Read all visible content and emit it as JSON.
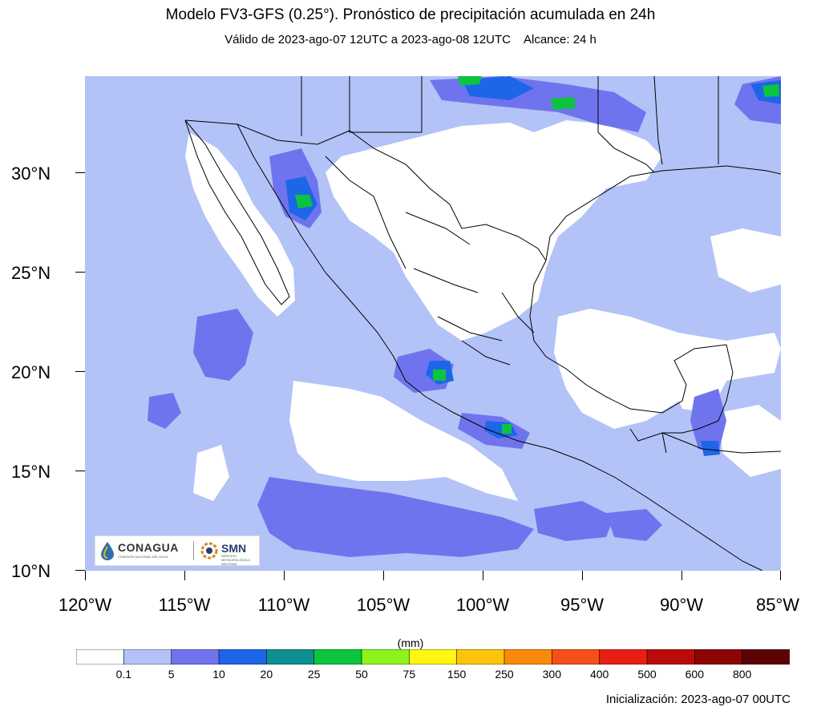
{
  "header": {
    "title": "Modelo FV3-GFS (0.25°). Pronóstico de precipitación acumulada en 24h",
    "valid": "Válido de 2023-ago-07 12UTC a 2023-ago-08 12UTC",
    "range": "Alcance: 24 h"
  },
  "map": {
    "lon_range": [
      -120,
      -85
    ],
    "lat_range": [
      10,
      35
    ],
    "lat_labels": [
      "30°N",
      "25°N",
      "20°N",
      "15°N",
      "10°N"
    ],
    "lat_values": [
      30,
      25,
      20,
      15,
      10
    ],
    "lon_labels": [
      "120°W",
      "115°W",
      "110°W",
      "105°W",
      "100°W",
      "95°W",
      "90°W",
      "85°W"
    ],
    "lon_values": [
      -120,
      -115,
      -110,
      -105,
      -100,
      -95,
      -90,
      -85
    ],
    "background_color": "#b3c3f7",
    "land_color": "#ffffff"
  },
  "logos": {
    "conagua": "CONAGUA",
    "conagua_sub": "COMISIÓN NACIONAL DEL AGUA",
    "smn": "SMN",
    "smn_sub": "SERVICIO METEOROLÓGICO NACIONAL"
  },
  "colorbar": {
    "units": "(mm)",
    "labels": [
      "0.1",
      "5",
      "10",
      "20",
      "25",
      "50",
      "75",
      "150",
      "250",
      "300",
      "400",
      "500",
      "600",
      "800"
    ],
    "colors": [
      "#ffffff",
      "#b3c3f7",
      "#6f74ee",
      "#1e66e8",
      "#0e8f91",
      "#0cc440",
      "#8cf41c",
      "#fff614",
      "#fcc40b",
      "#f98a0a",
      "#f5501a",
      "#e81e15",
      "#bb0a0a",
      "#8c0505",
      "#5c0303"
    ]
  },
  "footer": {
    "init": "Inicialización: 2023-ago-07 00UTC"
  }
}
